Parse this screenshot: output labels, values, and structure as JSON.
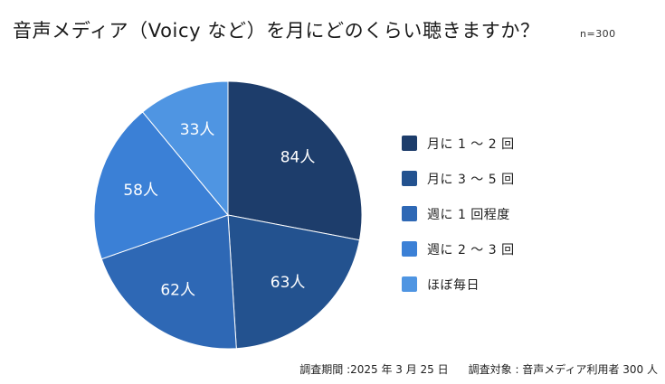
{
  "chart_data": {
    "type": "pie",
    "title": "音声メディア（Voicy など）を月にどのくらい聴きますか？",
    "sample_size": "n=300",
    "categories": [
      "月に 1 ～ 2 回",
      "月に 3 ～ 5 回",
      "週に 1 回程度",
      "週に 2 ～ 3 回",
      "ほぼ毎日"
    ],
    "values": [
      84,
      63,
      62,
      58,
      33
    ],
    "unit": "人",
    "colors": [
      "#1d3d6b",
      "#23528f",
      "#2e68b5",
      "#3b80d6",
      "#4f95e2"
    ],
    "legend_position": "right"
  },
  "footer": {
    "period": "調査期間 :2025 年 3 月 25 日",
    "target": "調査対象 : 音声メディア利用者 300 人"
  }
}
